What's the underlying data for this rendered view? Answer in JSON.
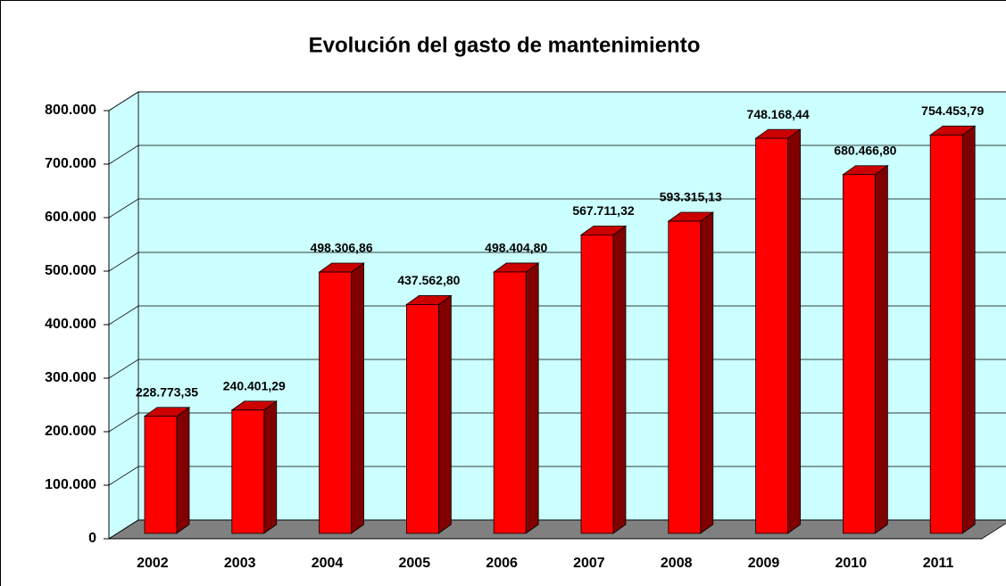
{
  "chart_data": {
    "type": "bar",
    "title": "Evolución del gasto de mantenimiento",
    "categories": [
      "2002",
      "2003",
      "2004",
      "2005",
      "2006",
      "2007",
      "2008",
      "2009",
      "2010",
      "2011"
    ],
    "values": [
      228773.35,
      240401.29,
      498306.86,
      437562.8,
      498404.8,
      567711.32,
      593315.13,
      748168.44,
      680466.8,
      754453.79
    ],
    "value_labels": [
      "228.773,35",
      "240.401,29",
      "498.306,86",
      "437.562,80",
      "498.404,80",
      "567.711,32",
      "593.315,13",
      "748.168,44",
      "680.466,80",
      "754.453,79"
    ],
    "color": "#ff0000",
    "ylim": [
      0,
      800000
    ],
    "yticks": [
      0,
      {
        "value": 100000,
        "label": "100.000"
      },
      {
        "value": 200000,
        "label": "200.000"
      },
      {
        "value": 300000,
        "label": "300.000"
      },
      {
        "value": 400000,
        "label": "400.000"
      },
      {
        "value": 500000,
        "label": "500.000"
      },
      {
        "value": 600000,
        "label": "600.000"
      },
      {
        "value": 700000,
        "label": "700.000"
      },
      {
        "value": 800000,
        "label": "800.000"
      }
    ],
    "grid": true
  }
}
